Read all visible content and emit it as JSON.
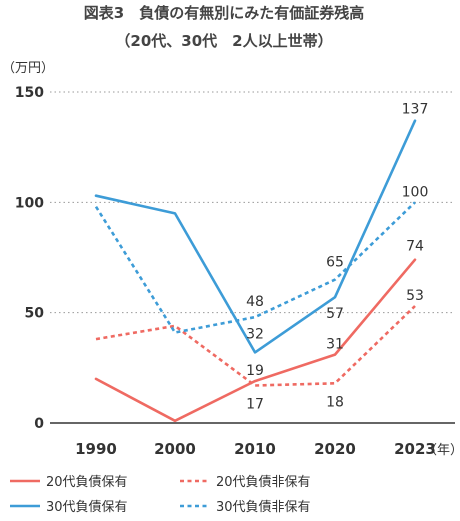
{
  "chart_data": {
    "type": "line",
    "title": "図表3　負債の有無別にみた有価証券残高",
    "subtitle": "（20代、30代　2人以上世帯）",
    "ylabel": "（万円）",
    "xlabel": "（年）",
    "x": [
      "1990",
      "2000",
      "2010",
      "2020",
      "2023"
    ],
    "ylim": [
      0,
      150
    ],
    "yticks": [
      "0",
      "50",
      "100",
      "150"
    ],
    "grid": "horizontal-dotted",
    "legend_position": "bottom",
    "series": [
      {
        "name": "20代負債保有",
        "color": "#ef6a62",
        "dash": false,
        "values": [
          20,
          1,
          19,
          31,
          74
        ],
        "labels": [
          "",
          "",
          "19",
          "31",
          "74"
        ]
      },
      {
        "name": "20代負債非保有",
        "color": "#ef6a62",
        "dash": true,
        "values": [
          38,
          44,
          17,
          18,
          53
        ],
        "labels": [
          "",
          "",
          "17",
          "18",
          "53"
        ]
      },
      {
        "name": "30代負債保有",
        "color": "#3d9cd7",
        "dash": false,
        "values": [
          103,
          95,
          32,
          57,
          137
        ],
        "labels": [
          "",
          "",
          "32",
          "57",
          "137"
        ]
      },
      {
        "name": "30代負債非保有",
        "color": "#3d9cd7",
        "dash": true,
        "values": [
          98,
          41,
          48,
          65,
          100
        ],
        "labels": [
          "",
          "",
          "48",
          "65",
          "100"
        ]
      }
    ]
  }
}
